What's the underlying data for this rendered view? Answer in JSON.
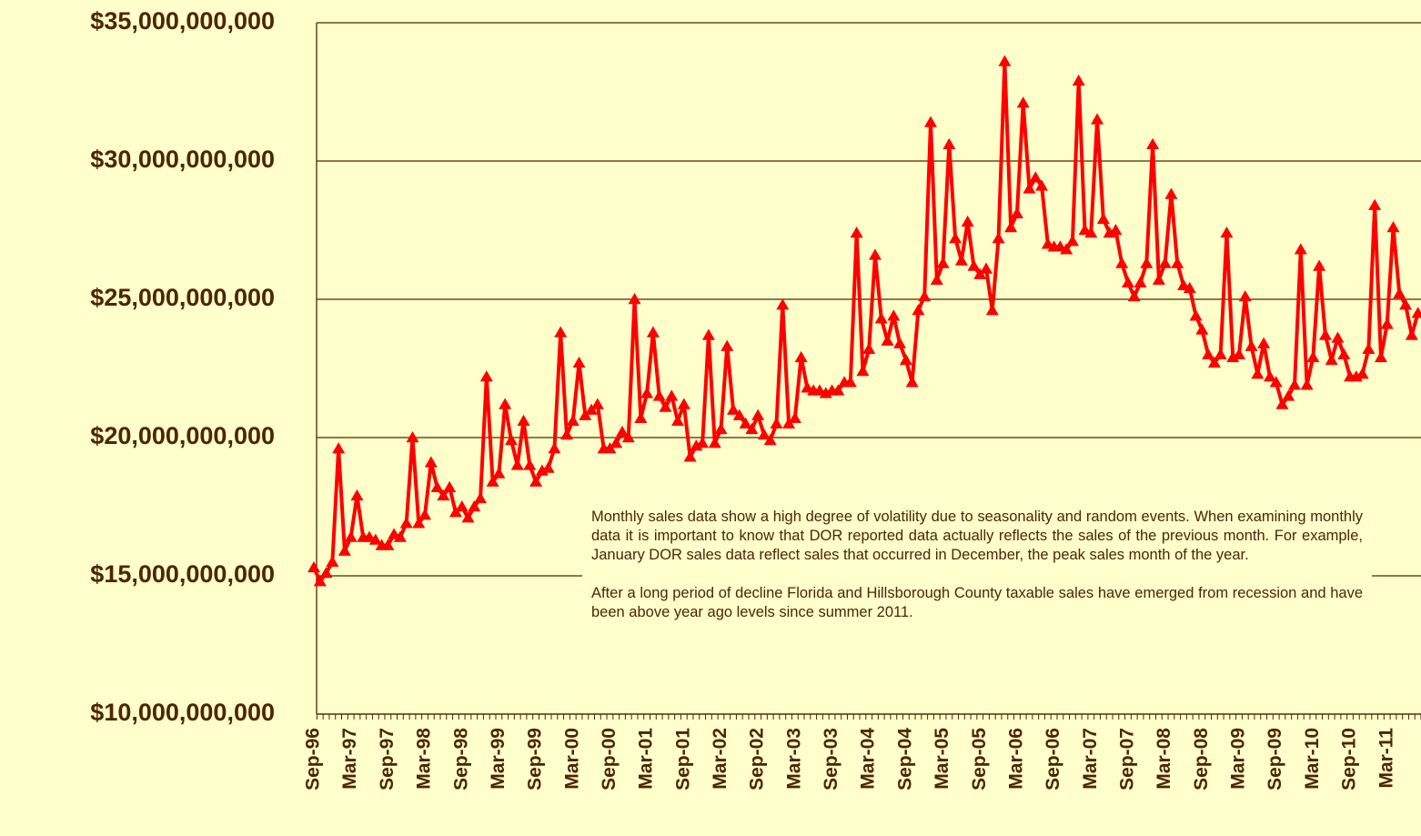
{
  "chart_data": {
    "type": "line",
    "categories": [
      "Sep-96",
      null,
      null,
      null,
      null,
      null,
      "Mar-97",
      null,
      null,
      null,
      null,
      null,
      "Sep-97",
      null,
      null,
      null,
      null,
      null,
      "Mar-98",
      null,
      null,
      null,
      null,
      null,
      "Sep-98",
      null,
      null,
      null,
      null,
      null,
      "Mar-99",
      null,
      null,
      null,
      null,
      null,
      "Sep-99",
      null,
      null,
      null,
      null,
      null,
      "Mar-00",
      null,
      null,
      null,
      null,
      null,
      "Sep-00",
      null,
      null,
      null,
      null,
      null,
      "Mar-01",
      null,
      null,
      null,
      null,
      null,
      "Sep-01",
      null,
      null,
      null,
      null,
      null,
      "Mar-02",
      null,
      null,
      null,
      null,
      null,
      "Sep-02",
      null,
      null,
      null,
      null,
      null,
      "Mar-03",
      null,
      null,
      null,
      null,
      null,
      "Sep-03",
      null,
      null,
      null,
      null,
      null,
      "Mar-04",
      null,
      null,
      null,
      null,
      null,
      "Sep-04",
      null,
      null,
      null,
      null,
      null,
      "Mar-05",
      null,
      null,
      null,
      null,
      null,
      "Sep-05",
      null,
      null,
      null,
      null,
      null,
      "Mar-06",
      null,
      null,
      null,
      null,
      null,
      "Sep-06",
      null,
      null,
      null,
      null,
      null,
      "Mar-07",
      null,
      null,
      null,
      null,
      null,
      "Sep-07",
      null,
      null,
      null,
      null,
      null,
      "Mar-08",
      null,
      null,
      null,
      null,
      null,
      "Sep-08",
      null,
      null,
      null,
      null,
      null,
      "Mar-09",
      null,
      null,
      null,
      null,
      null,
      "Sep-09",
      null,
      null,
      null,
      null,
      null,
      "Mar-10",
      null,
      null,
      null,
      null,
      null,
      "Sep-10",
      null,
      null,
      null,
      null,
      null,
      "Mar-11",
      null,
      null,
      null,
      null,
      null
    ],
    "series": [
      {
        "color": "#ff0000",
        "values": [
          15300000000,
          14800000000,
          15100000000,
          15500000000,
          19600000000,
          15900000000,
          16400000000,
          17900000000,
          16400000000,
          16400000000,
          16300000000,
          16100000000,
          16100000000,
          16500000000,
          16400000000,
          16900000000,
          20000000000,
          16900000000,
          17200000000,
          19100000000,
          18200000000,
          17900000000,
          18200000000,
          17300000000,
          17500000000,
          17100000000,
          17500000000,
          17800000000,
          22200000000,
          18400000000,
          18700000000,
          21200000000,
          19900000000,
          19000000000,
          20600000000,
          19000000000,
          18400000000,
          18800000000,
          18900000000,
          19600000000,
          23800000000,
          20100000000,
          20600000000,
          22700000000,
          20800000000,
          21000000000,
          21200000000,
          19600000000,
          19600000000,
          19800000000,
          20200000000,
          20000000000,
          25000000000,
          20700000000,
          21600000000,
          23800000000,
          21500000000,
          21100000000,
          21500000000,
          20600000000,
          21200000000,
          19300000000,
          19700000000,
          19800000000,
          23700000000,
          19800000000,
          20300000000,
          23300000000,
          21000000000,
          20800000000,
          20500000000,
          20300000000,
          20800000000,
          20100000000,
          19900000000,
          20500000000,
          24800000000,
          20500000000,
          20700000000,
          22900000000,
          21800000000,
          21700000000,
          21700000000,
          21600000000,
          21700000000,
          21700000000,
          22000000000,
          22000000000,
          27400000000,
          22400000000,
          23200000000,
          26600000000,
          24300000000,
          23500000000,
          24400000000,
          23400000000,
          22800000000,
          22000000000,
          24600000000,
          25100000000,
          31400000000,
          25700000000,
          26300000000,
          30600000000,
          27200000000,
          26400000000,
          27800000000,
          26200000000,
          25900000000,
          26100000000,
          24600000000,
          27200000000,
          33600000000,
          27600000000,
          28100000000,
          32100000000,
          29000000000,
          29400000000,
          29100000000,
          27000000000,
          26900000000,
          26900000000,
          26800000000,
          27100000000,
          32900000000,
          27500000000,
          27400000000,
          31500000000,
          27900000000,
          27400000000,
          27500000000,
          26300000000,
          25600000000,
          25100000000,
          25600000000,
          26300000000,
          30600000000,
          25700000000,
          26300000000,
          28800000000,
          26300000000,
          25500000000,
          25400000000,
          24400000000,
          23900000000,
          23000000000,
          22700000000,
          23000000000,
          27400000000,
          22900000000,
          23000000000,
          25100000000,
          23300000000,
          22300000000,
          23400000000,
          22200000000,
          22000000000,
          21200000000,
          21500000000,
          21900000000,
          26800000000,
          21900000000,
          22900000000,
          26200000000,
          23700000000,
          22800000000,
          23600000000,
          23000000000,
          22200000000,
          22200000000,
          22300000000,
          23200000000,
          28400000000,
          22900000000,
          24100000000,
          27600000000,
          25200000000,
          24800000000,
          23700000000,
          24500000000
        ]
      }
    ],
    "ylim": [
      10000000000,
      35000000000
    ],
    "yticks": [
      {
        "value": 10000000000,
        "label": "$10,000,000,000"
      },
      {
        "value": 15000000000,
        "label": "$15,000,000,000"
      },
      {
        "value": 20000000000,
        "label": "$20,000,000,000"
      },
      {
        "value": 25000000000,
        "label": "$25,000,000,000"
      },
      {
        "value": 30000000000,
        "label": "$30,000,000,000"
      },
      {
        "value": 35000000000,
        "label": "$35,000,000,000"
      }
    ],
    "grid": true,
    "annotations": [
      "Monthly sales data show a high degree of volatility due to seasonality and random events.  When examining monthly data it is important to know that DOR reported data actually reflects the sales of the previous month.  For example, January DOR sales data reflect sales that occurred in December, the peak sales month of the year.",
      "After a long period of decline Florida and Hillsborough County taxable sales have emerged from recession and have been above year ago levels since summer 2011."
    ]
  }
}
